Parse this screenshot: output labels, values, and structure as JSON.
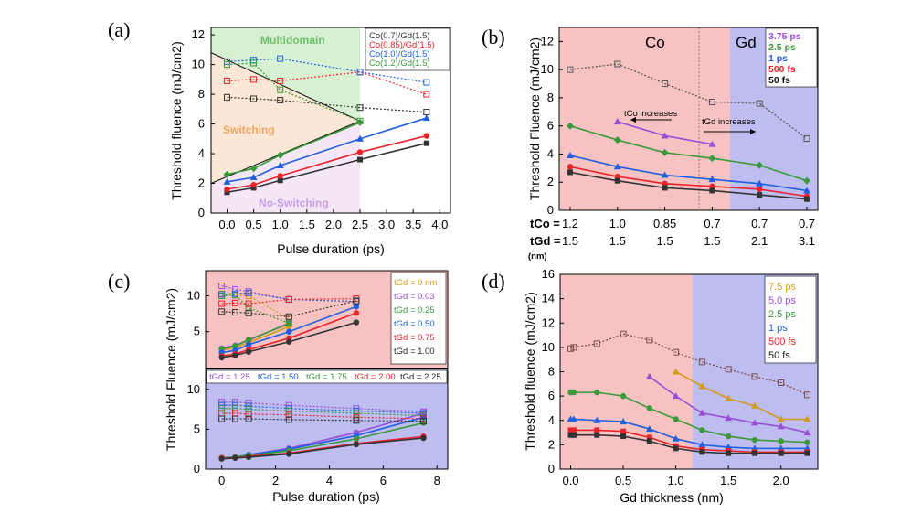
{
  "colors": {
    "black": "#333333",
    "red": "#e8242a",
    "blue": "#1f5fe0",
    "green": "#3a9a3a",
    "purple": "#9a4fd6",
    "orange": "#d49a1c"
  },
  "chart_data": [
    {
      "panel": "(a)",
      "type": "line",
      "xlabel": "Pulse duration (ps)",
      "ylabel": "Threshold fluence (mJ/cm2)",
      "xlim": [
        -0.3,
        4.2
      ],
      "ylim": [
        0,
        12.5
      ],
      "xticks": [
        "0.0",
        "0.5",
        "1.0",
        "1.5",
        "2.0",
        "2.5",
        "3.0",
        "3.5",
        "4.0"
      ],
      "yticks": [
        "0",
        "2",
        "4",
        "6",
        "8",
        "10",
        "12"
      ],
      "regions": [
        "Multidomain",
        "Switching",
        "No-Switching"
      ],
      "x": [
        0,
        0.5,
        1.0,
        2.5,
        3.75
      ],
      "series": [
        {
          "name": "Co(0.7)/Gd(1.5)",
          "color": "#333333",
          "switch": [
            1.4,
            1.7,
            2.2,
            3.6,
            4.7
          ],
          "multi": [
            7.8,
            7.7,
            7.6,
            7.1,
            6.8
          ]
        },
        {
          "name": "Co(0.85)/Gd(1.5)",
          "color": "#e8242a",
          "switch": [
            1.6,
            1.9,
            2.5,
            4.1,
            5.2
          ],
          "multi": [
            8.9,
            9.0,
            8.9,
            9.5,
            8.0
          ]
        },
        {
          "name": "Co(1.0)/Gd(1.5)",
          "color": "#1f5fe0",
          "switch": [
            2.1,
            2.4,
            3.2,
            5.0,
            6.4
          ],
          "multi": [
            10.2,
            10.3,
            10.4,
            9.5,
            8.8
          ]
        },
        {
          "name": "Co(1.2)/Gd(1.5)",
          "color": "#3a9a3a",
          "switch": [
            2.6,
            3.0,
            3.9,
            6.1,
            null
          ],
          "multi": [
            10.0,
            10.1,
            8.3,
            6.2,
            null
          ]
        }
      ]
    },
    {
      "panel": "(b)",
      "type": "line",
      "xlabel": "",
      "ylabel": "Threshold Fluence (mJ/cm2)",
      "ylim": [
        0,
        13
      ],
      "yticks": [
        "0",
        "2",
        "4",
        "6",
        "8",
        "10",
        "12"
      ],
      "row_labels": [
        "tCo =",
        "tGd =",
        "(nm)"
      ],
      "categories_tCo": [
        "1.2",
        "1.0",
        "0.85",
        "0.7",
        "0.7",
        "0.7"
      ],
      "categories_tGd": [
        "1.5",
        "1.5",
        "1.5",
        "1.5",
        "2.1",
        "3.1"
      ],
      "regions": [
        "Co",
        "Gd"
      ],
      "annotations": [
        "tCo increases",
        "tGd increases"
      ],
      "series": [
        {
          "name": "3.75 ps",
          "color": "#9a4fd6",
          "values": [
            null,
            6.3,
            5.3,
            4.7,
            null,
            null
          ]
        },
        {
          "name": "2.5 ps",
          "color": "#3a9a3a",
          "values": [
            6.0,
            5.0,
            4.1,
            3.7,
            3.2,
            2.1
          ]
        },
        {
          "name": "1 ps",
          "color": "#1f5fe0",
          "values": [
            3.9,
            3.1,
            2.5,
            2.2,
            1.9,
            1.4
          ]
        },
        {
          "name": "500 fs",
          "color": "#e8242a",
          "values": [
            3.1,
            2.4,
            1.9,
            1.7,
            1.5,
            1.0
          ]
        },
        {
          "name": "50 fs",
          "color": "#333333",
          "values": [
            2.7,
            2.1,
            1.6,
            1.4,
            1.1,
            0.8
          ]
        }
      ],
      "multidomain_values": [
        10.0,
        10.4,
        9.0,
        7.7,
        7.6,
        5.1
      ]
    },
    {
      "panel": "(c)",
      "type": "line",
      "xlabel": "Pulse duration (ps)",
      "ylabel": "Threshold Fluence (mJ/cm2)",
      "xlim": [
        -0.6,
        8.4
      ],
      "ylim": [
        0,
        12.5
      ],
      "xticks": [
        "0",
        "2",
        "4",
        "6",
        "8"
      ],
      "yticks_top": [
        "5",
        "10"
      ],
      "yticks_bottom": [
        "0",
        "5",
        "10"
      ],
      "legend_top": [
        "tGd = 0 nm",
        "tGd = 0.03",
        "tGd = 0.25",
        "tGd = 0.50",
        "tGd = 0.75",
        "tGd = 1.00"
      ],
      "legend_bottom": [
        "tGd = 1.25",
        "tGd = 1.50",
        "tGd = 1.75",
        "tGd = 2.00",
        "tGd = 2.25"
      ],
      "top_series": [
        {
          "color": "#d49a1c",
          "x": [
            0,
            0.5,
            1,
            2.5
          ],
          "switch": [
            2.4,
            2.8,
            3.5,
            5.7
          ],
          "multi": [
            10.3,
            10.1,
            10.0,
            6.8
          ]
        },
        {
          "color": "#9a4fd6",
          "x": [
            0,
            0.5,
            1,
            2.5
          ],
          "switch": [
            2.7,
            3.1,
            3.8,
            6.2
          ],
          "multi": [
            11.4,
            10.9,
            10.6,
            9.5
          ]
        },
        {
          "color": "#3a9a3a",
          "x": [
            0,
            0.5,
            1,
            2.5
          ],
          "switch": [
            2.6,
            3.0,
            3.9,
            6.1
          ],
          "multi": [
            10.0,
            10.1,
            8.3,
            6.2
          ]
        },
        {
          "color": "#1f5fe0",
          "x": [
            0,
            0.5,
            1,
            2.5,
            5
          ],
          "switch": [
            2.1,
            2.4,
            3.2,
            5.0,
            8.5
          ],
          "multi": [
            10.2,
            10.3,
            10.4,
            9.5,
            9.2
          ]
        },
        {
          "color": "#e8242a",
          "x": [
            0,
            0.5,
            1,
            2.5,
            5
          ],
          "switch": [
            1.6,
            1.9,
            2.5,
            4.1,
            7.6
          ],
          "multi": [
            8.9,
            9.0,
            8.9,
            9.5,
            9.6
          ]
        },
        {
          "color": "#333333",
          "x": [
            0,
            0.5,
            1,
            2.5,
            5
          ],
          "switch": [
            1.4,
            1.7,
            2.2,
            3.6,
            6.3
          ],
          "multi": [
            7.8,
            7.7,
            7.6,
            7.1,
            9.3
          ]
        }
      ],
      "bottom_series": [
        {
          "color": "#9a4fd6",
          "x": [
            0,
            0.5,
            1,
            2.5,
            5,
            7.5
          ],
          "switch": [
            1.4,
            1.5,
            1.8,
            2.6,
            4.6,
            7.0
          ],
          "multi": [
            8.4,
            8.4,
            8.3,
            8.0,
            7.6,
            7.2
          ]
        },
        {
          "color": "#1f5fe0",
          "x": [
            0,
            0.5,
            1,
            2.5,
            5,
            7.5
          ],
          "switch": [
            1.4,
            1.5,
            1.8,
            2.5,
            4.2,
            6.5
          ],
          "multi": [
            8.0,
            8.0,
            7.9,
            7.6,
            7.3,
            7.0
          ]
        },
        {
          "color": "#3a9a3a",
          "x": [
            0,
            0.5,
            1,
            2.5,
            5,
            7.5
          ],
          "switch": [
            1.4,
            1.5,
            1.7,
            2.3,
            3.8,
            5.8
          ],
          "multi": [
            7.6,
            7.6,
            7.5,
            7.3,
            7.0,
            6.7
          ]
        },
        {
          "color": "#e8242a",
          "x": [
            0,
            0.5,
            1,
            2.5,
            5,
            7.5
          ],
          "switch": [
            1.4,
            1.4,
            1.6,
            2.0,
            3.2,
            4.1
          ],
          "multi": [
            7.0,
            7.0,
            6.9,
            6.8,
            6.5,
            6.3
          ]
        },
        {
          "color": "#333333",
          "x": [
            0,
            0.5,
            1,
            2.5,
            5,
            7.5
          ],
          "switch": [
            1.3,
            1.4,
            1.5,
            1.9,
            3.1,
            3.9
          ],
          "multi": [
            6.3,
            6.3,
            6.3,
            6.2,
            6.1,
            6.0
          ]
        }
      ]
    },
    {
      "panel": "(d)",
      "type": "line",
      "xlabel": "Gd thickness (nm)",
      "ylabel": "Threshold fluence (mJ/cm2)",
      "xlim": [
        -0.1,
        2.35
      ],
      "ylim": [
        0,
        16
      ],
      "xticks": [
        "0.0",
        "0.5",
        "1.0",
        "1.5",
        "2.0"
      ],
      "yticks": [
        "0",
        "2",
        "4",
        "6",
        "8",
        "10",
        "12",
        "14",
        "16"
      ],
      "x": [
        0,
        0.03,
        0.25,
        0.5,
        0.75,
        1.0,
        1.25,
        1.5,
        1.75,
        2.0,
        2.25
      ],
      "series": [
        {
          "name": "7.5 ps",
          "color": "#d49a1c",
          "values": [
            null,
            null,
            null,
            null,
            null,
            8.0,
            6.8,
            5.8,
            5.2,
            4.1,
            4.1
          ]
        },
        {
          "name": "5.0 ps",
          "color": "#9a4fd6",
          "values": [
            null,
            null,
            null,
            null,
            7.6,
            6.0,
            4.6,
            4.2,
            3.8,
            3.5,
            3.0
          ]
        },
        {
          "name": "2.5 ps",
          "color": "#3a9a3a",
          "values": [
            6.3,
            6.3,
            6.3,
            6.0,
            5.0,
            4.1,
            3.2,
            2.7,
            2.4,
            2.3,
            2.2
          ]
        },
        {
          "name": "1 ps",
          "color": "#1f5fe0",
          "values": [
            4.1,
            4.1,
            4.0,
            3.9,
            3.3,
            2.5,
            2.0,
            1.8,
            1.7,
            1.7,
            1.7
          ]
        },
        {
          "name": "500 fs",
          "color": "#e8242a",
          "values": [
            3.2,
            3.2,
            3.2,
            3.1,
            2.6,
            1.9,
            1.6,
            1.5,
            1.4,
            1.4,
            1.4
          ]
        },
        {
          "name": "50 fs",
          "color": "#333333",
          "values": [
            2.8,
            2.8,
            2.8,
            2.7,
            2.3,
            1.7,
            1.4,
            1.3,
            1.3,
            1.3,
            1.3
          ]
        }
      ],
      "multidomain_values": [
        9.9,
        10.0,
        10.3,
        11.1,
        10.6,
        9.6,
        8.8,
        8.2,
        7.6,
        7.1,
        6.1
      ]
    }
  ]
}
